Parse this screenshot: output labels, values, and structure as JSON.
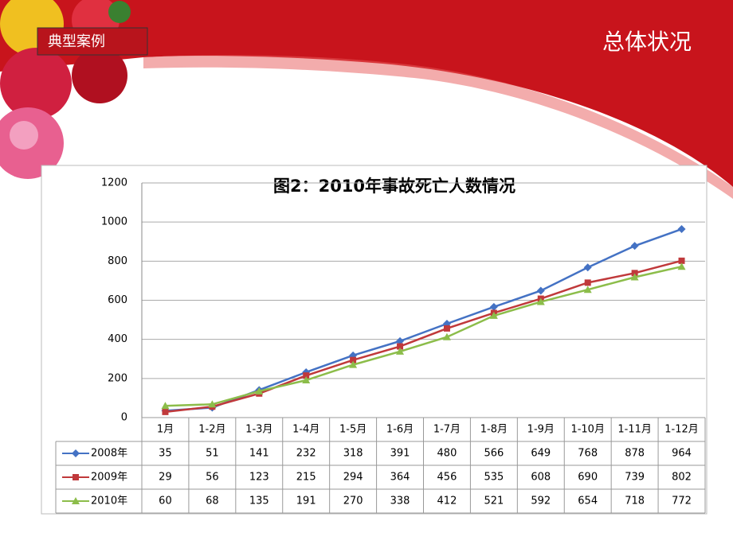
{
  "slide": {
    "tag": "典型案例",
    "title": "总体状况"
  },
  "chart_data": {
    "type": "line",
    "title": "图2：2010年事故死亡人数情况",
    "categories": [
      "1月",
      "1-2月",
      "1-3月",
      "1-4月",
      "1-5月",
      "1-6月",
      "1-7月",
      "1-8月",
      "1-9月",
      "1-10月",
      "1-11月",
      "1-12月"
    ],
    "series": [
      {
        "name": "2008年",
        "color": "#4472c4",
        "marker": "diamond",
        "values": [
          35,
          51,
          141,
          232,
          318,
          391,
          480,
          566,
          649,
          768,
          878,
          964
        ]
      },
      {
        "name": "2009年",
        "color": "#c0393b",
        "marker": "square",
        "values": [
          29,
          56,
          123,
          215,
          294,
          364,
          456,
          535,
          608,
          690,
          739,
          802
        ]
      },
      {
        "name": "2010年",
        "color": "#8cbd4a",
        "marker": "triangle",
        "values": [
          60,
          68,
          135,
          191,
          270,
          338,
          412,
          521,
          592,
          654,
          718,
          772
        ]
      }
    ],
    "ylim": [
      0,
      1200
    ],
    "yticks": [
      0,
      200,
      400,
      600,
      800,
      1000,
      1200
    ],
    "grid": true
  }
}
